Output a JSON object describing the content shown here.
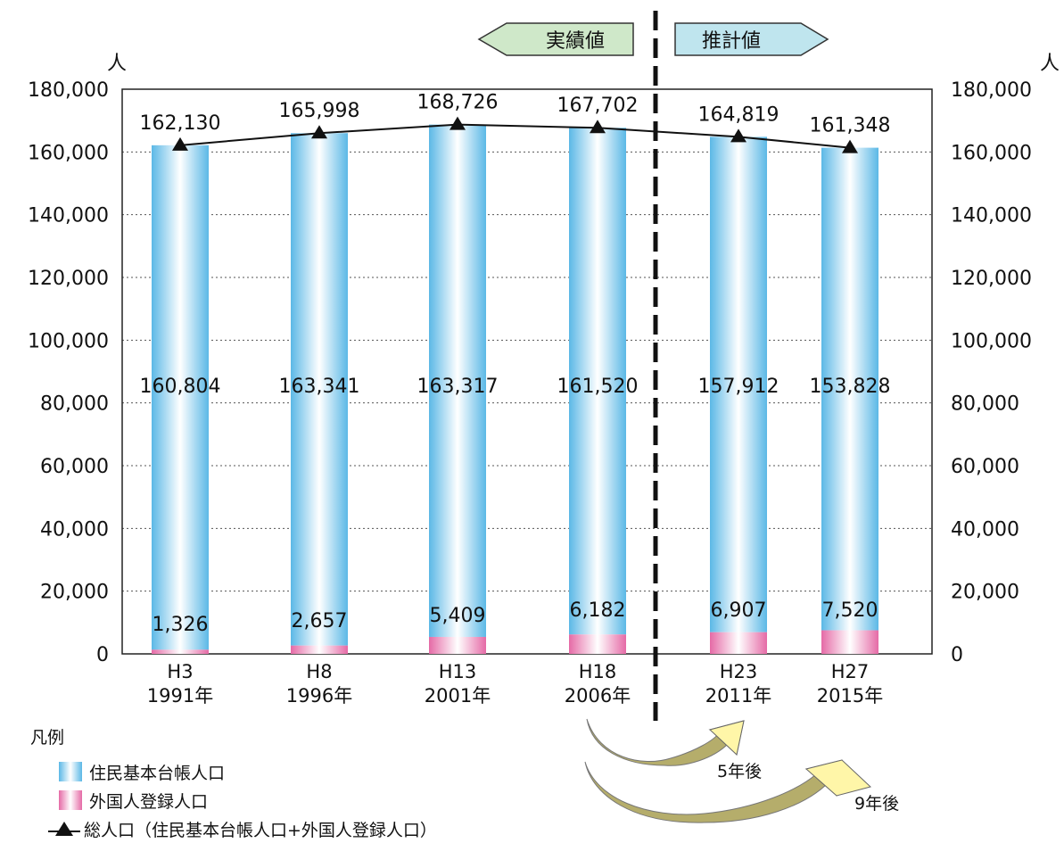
{
  "chart_data": {
    "type": "bar",
    "stacked": true,
    "y_unit_label": "人",
    "ylim": [
      0,
      180000
    ],
    "yticks": [
      "0",
      "20,000",
      "40,000",
      "60,000",
      "80,000",
      "100,000",
      "120,000",
      "140,000",
      "160,000",
      "180,000"
    ],
    "categories": [
      {
        "line1": "H3",
        "line2": "1991年"
      },
      {
        "line1": "H8",
        "line2": "1996年"
      },
      {
        "line1": "H13",
        "line2": "2001年"
      },
      {
        "line1": "H18",
        "line2": "2006年"
      },
      {
        "line1": "H23",
        "line2": "2011年"
      },
      {
        "line1": "H27",
        "line2": "2015年"
      }
    ],
    "series": [
      {
        "name": "住民基本台帳人口",
        "values": [
          160804,
          163341,
          163317,
          161520,
          157912,
          153828
        ],
        "labels": [
          "160,804",
          "163,341",
          "163,317",
          "161,520",
          "157,912",
          "153,828"
        ],
        "color": "#5bb8e6"
      },
      {
        "name": "外国人登録人口",
        "values": [
          1326,
          2657,
          5409,
          6182,
          6907,
          7520
        ],
        "labels": [
          "1,326",
          "2,657",
          "5,409",
          "6,182",
          "6,907",
          "7,520"
        ],
        "color": "#e56aa6"
      }
    ],
    "total": {
      "name": "総人口（住民基本台帳人口+外国人登録人口）",
      "values": [
        162130,
        165998,
        168726,
        167702,
        164819,
        161348
      ],
      "labels": [
        "162,130",
        "165,998",
        "168,726",
        "167,702",
        "164,819",
        "161,348"
      ]
    },
    "grid": true,
    "divider_after_category": 3,
    "banners": {
      "actual": "実績値",
      "estimate": "推計値"
    }
  },
  "legend": {
    "title": "凡例",
    "items": [
      "住民基本台帳人口",
      "外国人登録人口",
      "総人口（住民基本台帳人口+外国人登録人口）"
    ]
  },
  "annotations": {
    "after5": "5年後",
    "after9": "9年後"
  },
  "colors": {
    "bar_blue": "#5bb8e6",
    "bar_pink": "#e56aa6",
    "banner_green": "#cfe8c9",
    "banner_blue": "#bfe5ee",
    "arrow_olive": "#b5ad6b",
    "arrow_yellow": "#fff6a8"
  }
}
